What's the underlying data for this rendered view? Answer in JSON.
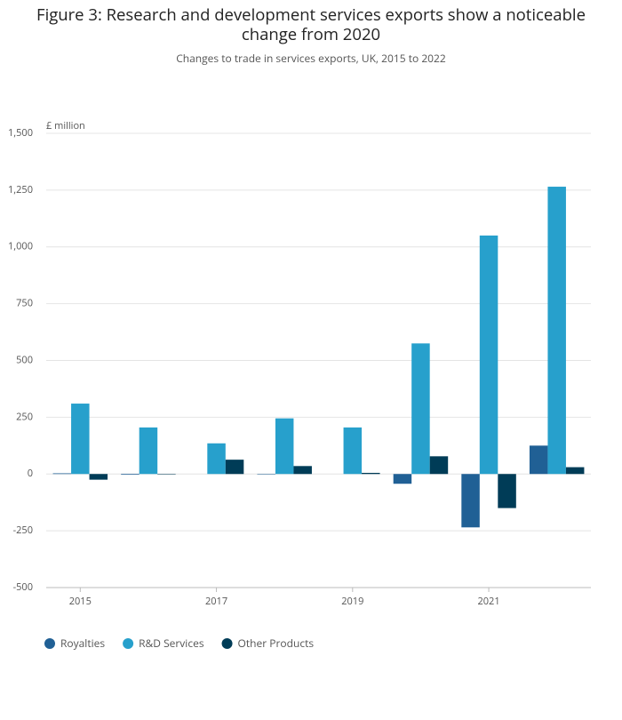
{
  "chart_data": {
    "type": "bar",
    "title": "Figure 3: Research and development services exports show a noticeable change from 2020",
    "subtitle": "Changes to trade in services exports, UK, 2015 to 2022",
    "y_label": "£ million",
    "categories": [
      "2015",
      null,
      "2017",
      null,
      "2019",
      null,
      "2021",
      null
    ],
    "series": [
      {
        "name": "Royalties",
        "color": "#206095",
        "values": [
          3,
          -3,
          0,
          -2,
          0,
          -43,
          -235,
          125
        ]
      },
      {
        "name": "R&D Services",
        "color": "#27a0cc",
        "values": [
          310,
          205,
          135,
          245,
          205,
          575,
          1050,
          1265
        ]
      },
      {
        "name": "Other Products",
        "color": "#003c57",
        "values": [
          -25,
          -2,
          63,
          35,
          5,
          78,
          -150,
          30
        ]
      }
    ],
    "ylim": [
      -500,
      1500
    ],
    "yticks": [
      {
        "value": 1500,
        "label": "1,500"
      },
      {
        "value": 1250,
        "label": "1,250"
      },
      {
        "value": 1000,
        "label": "1,000"
      },
      750,
      500,
      250,
      0,
      {
        "value": -250,
        "label": "-250"
      },
      {
        "value": -500,
        "label": "-500"
      }
    ],
    "grid": true
  }
}
